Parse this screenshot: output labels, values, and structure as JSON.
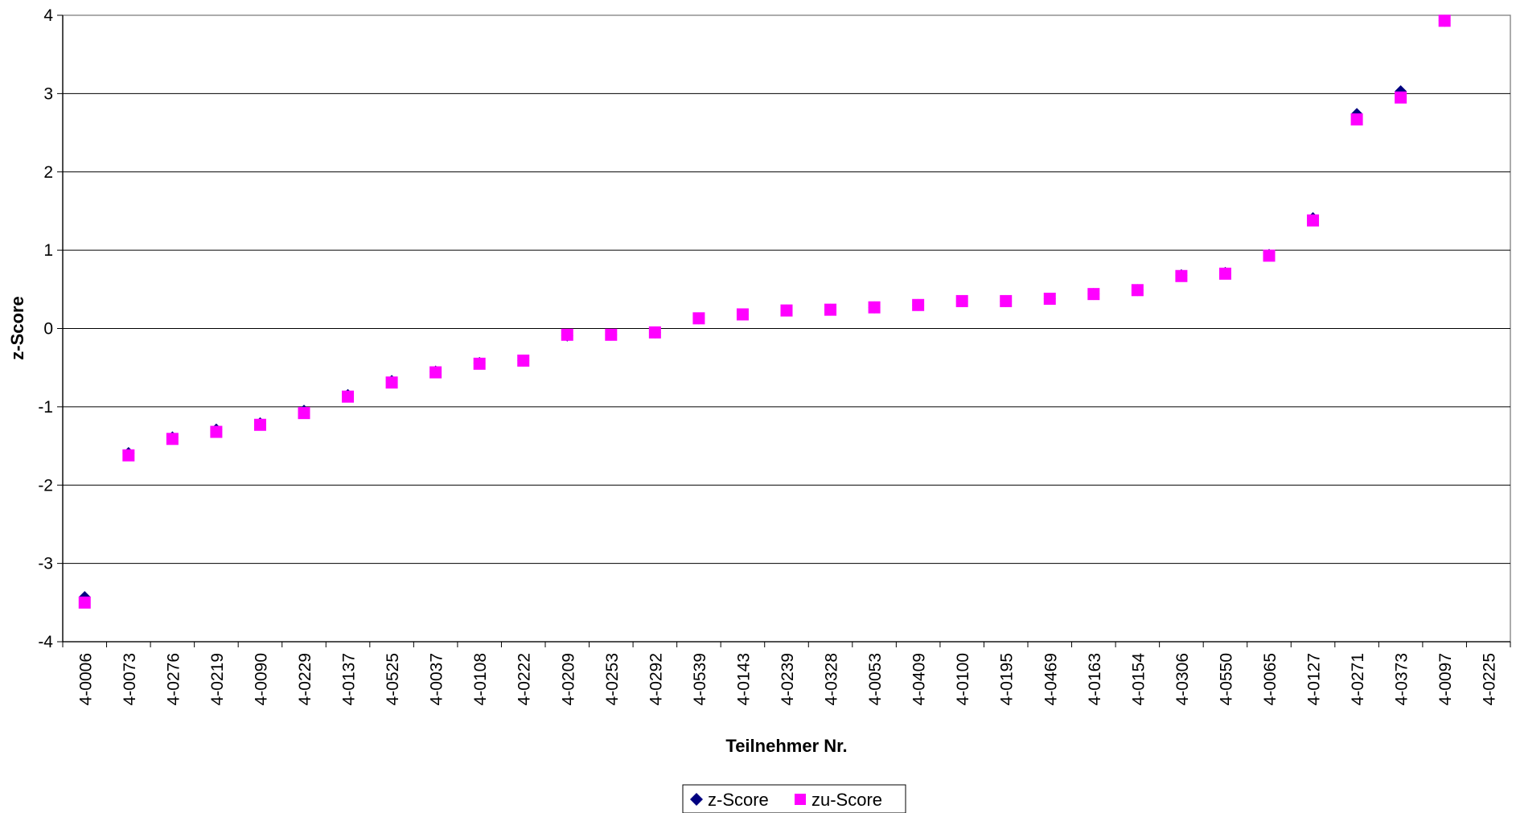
{
  "chart_data": {
    "type": "scatter",
    "xlabel": "Teilnehmer Nr.",
    "ylabel": "z-Score",
    "ylim": [
      -4,
      4
    ],
    "yticks": [
      -4,
      -3,
      -2,
      -1,
      0,
      1,
      2,
      3,
      4
    ],
    "grid": "horizontal",
    "legend_position": "bottom",
    "categories": [
      "4-0006",
      "4-0073",
      "4-0276",
      "4-0219",
      "4-0090",
      "4-0229",
      "4-0137",
      "4-0525",
      "4-0037",
      "4-0108",
      "4-0222",
      "4-0209",
      "4-0253",
      "4-0292",
      "4-0539",
      "4-0143",
      "4-0239",
      "4-0328",
      "4-0053",
      "4-0409",
      "4-0100",
      "4-0195",
      "4-0469",
      "4-0163",
      "4-0154",
      "4-0306",
      "4-0550",
      "4-0065",
      "4-0127",
      "4-0271",
      "4-0373",
      "4-0097",
      "4-0225"
    ],
    "series": [
      {
        "name": "z-Score",
        "marker": "diamond",
        "color": "#000080",
        "values": [
          -3.43,
          -1.59,
          -1.39,
          -1.29,
          -1.21,
          -1.05,
          -0.85,
          -0.67,
          -0.55,
          -0.44,
          -0.41,
          -0.09,
          -0.08,
          -0.05,
          0.13,
          0.18,
          0.23,
          0.24,
          0.27,
          0.3,
          0.35,
          0.35,
          0.38,
          0.44,
          0.49,
          0.68,
          0.71,
          0.94,
          1.41,
          2.74,
          3.03,
          3.93,
          null
        ]
      },
      {
        "name": "zu-Score",
        "marker": "square",
        "color": "#FF00FF",
        "values": [
          -3.5,
          -1.62,
          -1.41,
          -1.32,
          -1.23,
          -1.08,
          -0.87,
          -0.69,
          -0.56,
          -0.45,
          -0.41,
          -0.08,
          -0.08,
          -0.05,
          0.13,
          0.18,
          0.23,
          0.24,
          0.27,
          0.3,
          0.35,
          0.35,
          0.38,
          0.44,
          0.49,
          0.67,
          0.7,
          0.93,
          1.38,
          2.67,
          2.95,
          3.93,
          null
        ]
      }
    ]
  }
}
